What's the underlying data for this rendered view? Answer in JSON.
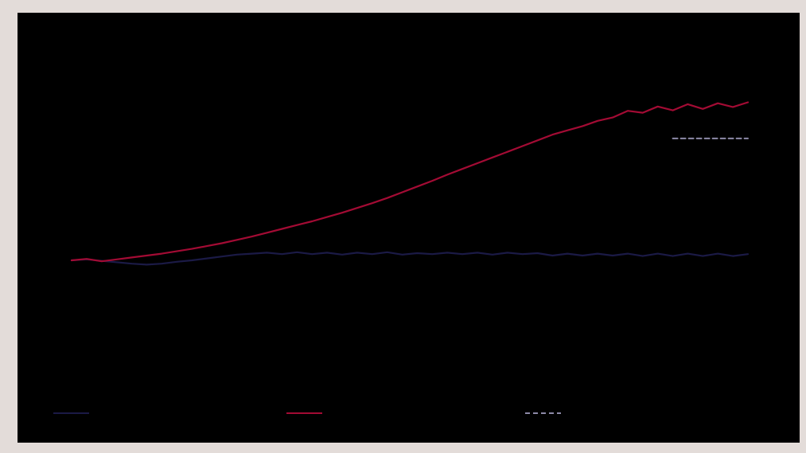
{
  "colors": {
    "background": "#000000",
    "frame": "#e3dcd9",
    "series_navy": "#1b1a46",
    "series_red": "#a30b34",
    "series_dashed": "#8d8aa8"
  },
  "chart_data": {
    "type": "line",
    "title": "",
    "xlabel": "",
    "ylabel": "",
    "grid": false,
    "legend_placement": "bottom",
    "x_count": 46,
    "ylim": [
      0,
      100
    ],
    "series": [
      {
        "key": "navy",
        "style": "solid",
        "values": [
          50.0,
          50.2,
          49.9,
          49.6,
          49.3,
          49.1,
          49.3,
          49.7,
          50.0,
          50.4,
          50.8,
          51.2,
          51.4,
          51.6,
          51.3,
          51.7,
          51.3,
          51.6,
          51.2,
          51.6,
          51.3,
          51.7,
          51.2,
          51.5,
          51.3,
          51.6,
          51.3,
          51.6,
          51.2,
          51.6,
          51.3,
          51.5,
          51.0,
          51.4,
          51.0,
          51.4,
          51.0,
          51.4,
          50.9,
          51.4,
          50.9,
          51.4,
          50.9,
          51.4,
          50.9,
          51.3
        ]
      },
      {
        "key": "red",
        "style": "solid",
        "values": [
          50.0,
          50.3,
          49.8,
          50.2,
          50.6,
          51.0,
          51.4,
          51.9,
          52.4,
          53.0,
          53.6,
          54.3,
          55.0,
          55.8,
          56.6,
          57.4,
          58.2,
          59.1,
          60.0,
          61.0,
          62.0,
          63.1,
          64.3,
          65.5,
          66.7,
          68.0,
          69.2,
          70.4,
          71.6,
          72.8,
          74.0,
          75.2,
          76.4,
          77.3,
          78.2,
          79.3,
          80.0,
          81.4,
          81.0,
          82.3,
          81.5,
          82.8,
          81.8,
          83.0,
          82.2,
          83.2
        ]
      },
      {
        "key": "dashed",
        "style": "dashed",
        "x_from": 40,
        "x_to": 45,
        "values": [
          75.6,
          75.6
        ]
      }
    ]
  },
  "legend": {
    "items": [
      {
        "key": "navy",
        "style": "solid"
      },
      {
        "key": "red",
        "style": "solid"
      },
      {
        "key": "dashed",
        "style": "dashed"
      }
    ]
  }
}
